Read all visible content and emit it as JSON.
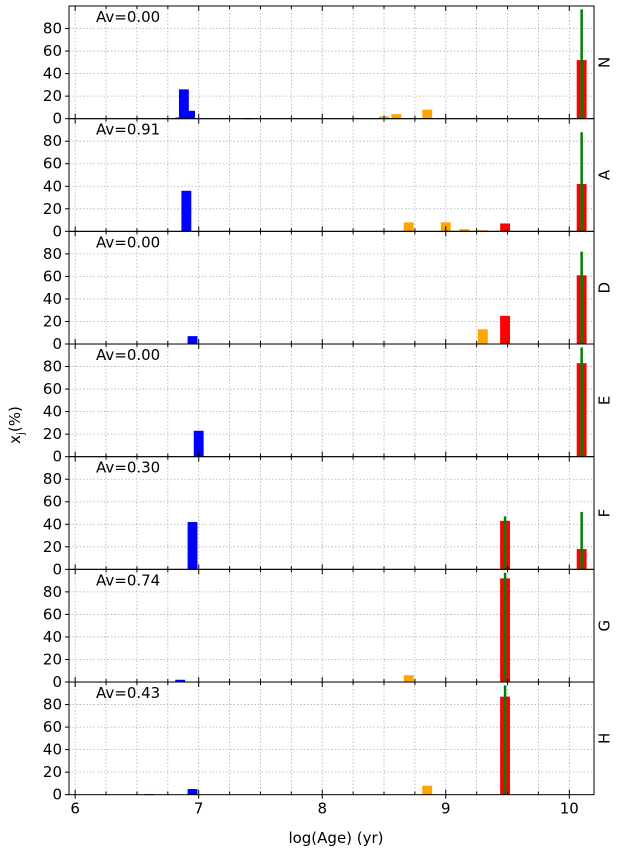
{
  "figure": {
    "xlabel": "log(Age) (yr)",
    "ylabel": "x$_j$(%)"
  },
  "colors": {
    "young": "#0000ff",
    "intermediate": "#ffa500",
    "old": "#ff0000",
    "marker": "#008000",
    "grid": "#b0b0b0"
  },
  "chart_data": {
    "type": "bar",
    "xlim": [
      5.95,
      10.2
    ],
    "ylim": [
      0,
      100
    ],
    "x_ticks": [
      "6",
      "7",
      "8",
      "9",
      "10"
    ],
    "y_ticks": [
      "0",
      "20",
      "40",
      "60",
      "80"
    ],
    "grid": true,
    "panels": [
      {
        "label": "N",
        "av_text": "Av=0.00",
        "marker_age": 10.1,
        "marker_height": 97,
        "bars": [
          {
            "age": 6.85,
            "value": 1,
            "group": "young"
          },
          {
            "age": 6.88,
            "value": 26,
            "group": "young"
          },
          {
            "age": 6.93,
            "value": 7,
            "group": "young"
          },
          {
            "age": 7.4,
            "value": 0.5,
            "group": "young"
          },
          {
            "age": 8.5,
            "value": 2,
            "group": "intermediate"
          },
          {
            "age": 8.6,
            "value": 4,
            "group": "intermediate"
          },
          {
            "age": 8.85,
            "value": 8,
            "group": "intermediate"
          },
          {
            "age": 10.1,
            "value": 52,
            "group": "old"
          }
        ]
      },
      {
        "label": "A",
        "av_text": "Av=0.91",
        "marker_age": 10.1,
        "marker_height": 88,
        "bars": [
          {
            "age": 6.9,
            "value": 36,
            "group": "young"
          },
          {
            "age": 8.7,
            "value": 8,
            "group": "intermediate"
          },
          {
            "age": 9.0,
            "value": 8,
            "group": "intermediate"
          },
          {
            "age": 9.15,
            "value": 2,
            "group": "intermediate"
          },
          {
            "age": 9.3,
            "value": 1,
            "group": "intermediate"
          },
          {
            "age": 9.48,
            "value": 7,
            "group": "old"
          },
          {
            "age": 10.1,
            "value": 42,
            "group": "old"
          }
        ]
      },
      {
        "label": "D",
        "av_text": "Av=0.00",
        "marker_age": 10.1,
        "marker_height": 82,
        "bars": [
          {
            "age": 6.95,
            "value": 7,
            "group": "young"
          },
          {
            "age": 9.3,
            "value": 13,
            "group": "intermediate"
          },
          {
            "age": 9.48,
            "value": 25,
            "group": "old"
          },
          {
            "age": 10.1,
            "value": 61,
            "group": "old"
          }
        ]
      },
      {
        "label": "E",
        "av_text": "Av=0.00",
        "marker_age": 10.1,
        "marker_height": 97,
        "bars": [
          {
            "age": 7.0,
            "value": 23,
            "group": "young"
          },
          {
            "age": 10.1,
            "value": 83,
            "group": "old"
          }
        ]
      },
      {
        "label": "F",
        "av_text": "Av=0.30",
        "marker_age": 10.1,
        "marker_height": 51,
        "marker2_age": 9.48,
        "marker2_height": 47,
        "bars": [
          {
            "age": 6.95,
            "value": 42,
            "group": "young"
          },
          {
            "age": 9.48,
            "value": 43,
            "group": "old"
          },
          {
            "age": 10.1,
            "value": 18,
            "group": "old"
          }
        ]
      },
      {
        "label": "G",
        "av_text": "Av=0.74",
        "marker_age": 9.48,
        "marker_height": 97,
        "bars": [
          {
            "age": 6.85,
            "value": 2,
            "group": "young"
          },
          {
            "age": 8.7,
            "value": 6,
            "group": "intermediate"
          },
          {
            "age": 9.48,
            "value": 92,
            "group": "old"
          }
        ]
      },
      {
        "label": "H",
        "av_text": "Av=0.43",
        "marker_age": 9.48,
        "marker_height": 97,
        "bars": [
          {
            "age": 6.6,
            "value": 0.5,
            "group": "young"
          },
          {
            "age": 6.95,
            "value": 5,
            "group": "young"
          },
          {
            "age": 8.85,
            "value": 8,
            "group": "intermediate"
          },
          {
            "age": 9.48,
            "value": 87,
            "group": "old"
          }
        ]
      }
    ]
  }
}
